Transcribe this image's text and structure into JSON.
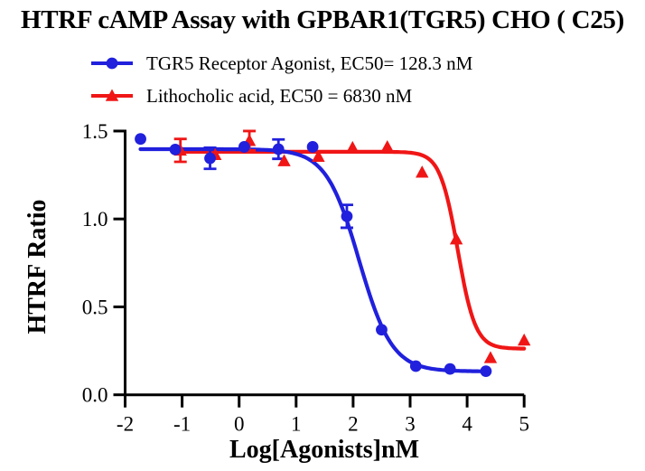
{
  "title": "HTRF cAMP Assay with GPBAR1(TGR5) CHO ( C25)",
  "axes": {
    "x": {
      "label": "Log[Agonists]nM"
    },
    "y": {
      "label": "HTRF Ratio"
    }
  },
  "chart_data": {
    "type": "scatter",
    "title": "HTRF cAMP Assay with GPBAR1(TGR5) CHO ( C25)",
    "xlabel": "Log[Agonists]nM",
    "ylabel": "HTRF Ratio",
    "xlim": [
      -2,
      5
    ],
    "ylim": [
      0,
      1.5
    ],
    "grid": false,
    "legend_position": "top-left",
    "x_ticks": [
      {
        "v": -2,
        "label": "-2"
      },
      {
        "v": -1,
        "label": "-1"
      },
      {
        "v": 0,
        "label": "0"
      },
      {
        "v": 1,
        "label": "1"
      },
      {
        "v": 2,
        "label": "2"
      },
      {
        "v": 3,
        "label": "3"
      },
      {
        "v": 4,
        "label": "4"
      },
      {
        "v": 5,
        "label": "5"
      }
    ],
    "y_ticks": [
      {
        "v": 0,
        "label": "0.0"
      },
      {
        "v": 0.5,
        "label": "0.5"
      },
      {
        "v": 1.0,
        "label": "1.0"
      },
      {
        "v": 1.5,
        "label": "1.5"
      }
    ],
    "series": [
      {
        "id": "lithocholic-acid",
        "name": "Lithocholic acid, EC50 = 6830 nM",
        "ec50_nM": 6830,
        "color": "#f01616",
        "marker": "triangle",
        "points": [
          {
            "x": -1.03,
            "y": 1.39,
            "err": 0.065
          },
          {
            "x": -0.42,
            "y": 1.365
          },
          {
            "x": 0.18,
            "y": 1.445,
            "err": 0.055
          },
          {
            "x": 0.79,
            "y": 1.33
          },
          {
            "x": 1.39,
            "y": 1.355
          },
          {
            "x": 1.99,
            "y": 1.405
          },
          {
            "x": 2.6,
            "y": 1.41
          },
          {
            "x": 3.21,
            "y": 1.265
          },
          {
            "x": 3.81,
            "y": 0.885
          },
          {
            "x": 4.41,
            "y": 0.21
          },
          {
            "x": 5.0,
            "y": 0.31
          }
        ],
        "fit": {
          "top": 1.382,
          "bottom": 0.262,
          "logec50": 3.836,
          "hill": 2.8,
          "x_start": -1.03,
          "x_end": 5.0
        }
      },
      {
        "id": "tgr5-agonist",
        "name": "TGR5 Receptor Agonist, EC50= 128.3 nM",
        "ec50_nM": 128.3,
        "color": "#2020dd",
        "marker": "circle",
        "points": [
          {
            "x": -1.73,
            "y": 1.455
          },
          {
            "x": -1.12,
            "y": 1.395
          },
          {
            "x": -0.51,
            "y": 1.345,
            "err": 0.06
          },
          {
            "x": 0.09,
            "y": 1.41
          },
          {
            "x": 0.69,
            "y": 1.397,
            "err": 0.055
          },
          {
            "x": 1.29,
            "y": 1.41
          },
          {
            "x": 1.89,
            "y": 1.015,
            "err": 0.065
          },
          {
            "x": 2.5,
            "y": 0.37
          },
          {
            "x": 3.1,
            "y": 0.163
          },
          {
            "x": 3.7,
            "y": 0.147
          },
          {
            "x": 4.33,
            "y": 0.134
          }
        ],
        "fit": {
          "top": 1.397,
          "bottom": 0.133,
          "logec50": 2.105,
          "hill": 1.5,
          "x_start": -1.73,
          "x_end": 4.33
        }
      }
    ]
  },
  "legend_order": [
    1,
    0
  ]
}
